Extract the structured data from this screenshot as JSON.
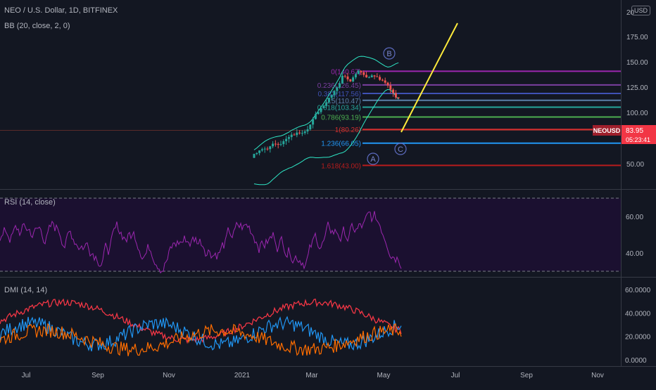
{
  "header": {
    "title": "NEO / U.S. Dollar, 1D, BITFINEX",
    "bb_label": "BB (20, close, 2, 0)",
    "currency_badge": "USD",
    "symbol_tag": "NEOUSD",
    "last_price": "83.95",
    "countdown": "05:23:41"
  },
  "panels": {
    "price": {
      "y_ticks": [
        "20",
        "175.00",
        "150.00",
        "125.00",
        "100.00",
        "50.00"
      ],
      "fib_levels": [
        {
          "label": "0(140.67)",
          "value": 140.67,
          "color": "#9c27b0"
        },
        {
          "label": "0.236(126.45)",
          "value": 126.45,
          "color": "#7b3fa0"
        },
        {
          "label": "0.382(117.56)",
          "value": 117.56,
          "color": "#3f51b5"
        },
        {
          "label": "0.5(110.47)",
          "value": 110.47,
          "color": "#5b7fa8"
        },
        {
          "label": "0.618(103.34)",
          "value": 103.34,
          "color": "#26a69a"
        },
        {
          "label": "0.786(93.19)",
          "value": 93.19,
          "color": "#4caf50"
        },
        {
          "label": "1(80.26)",
          "value": 80.26,
          "color": "#d32f2f"
        },
        {
          "label": "1.236(66.05)",
          "value": 66.05,
          "color": "#2196f3"
        },
        {
          "label": "1.618(43.00)",
          "value": 43.0,
          "color": "#b71c1c"
        }
      ],
      "wave_labels": [
        "B",
        "A",
        "C"
      ]
    },
    "rsi": {
      "label": "RSI (14, close)",
      "y_ticks": [
        "60.00",
        "40.00"
      ],
      "upper_band": 70,
      "lower_band": 30,
      "line_color": "#9c27b0"
    },
    "dmi": {
      "label": "DMI (14, 14)",
      "y_ticks": [
        "60.0000",
        "40.0000",
        "20.0000",
        "0.0000"
      ],
      "colors": {
        "adx": "#f23645",
        "plus": "#2196f3",
        "minus": "#ff6d00"
      }
    }
  },
  "x_axis": {
    "ticks": [
      "Jul",
      "Sep",
      "Nov",
      "2021",
      "Mar",
      "May",
      "Jul",
      "Sep",
      "Nov"
    ]
  },
  "theme": {
    "background": "#131722",
    "candle_up": "#26a69a",
    "candle_down": "#ef5350",
    "bb_color": "#2ee6c5",
    "projection_line": "#ffeb3b",
    "last_price_bg": "#f23645"
  }
}
